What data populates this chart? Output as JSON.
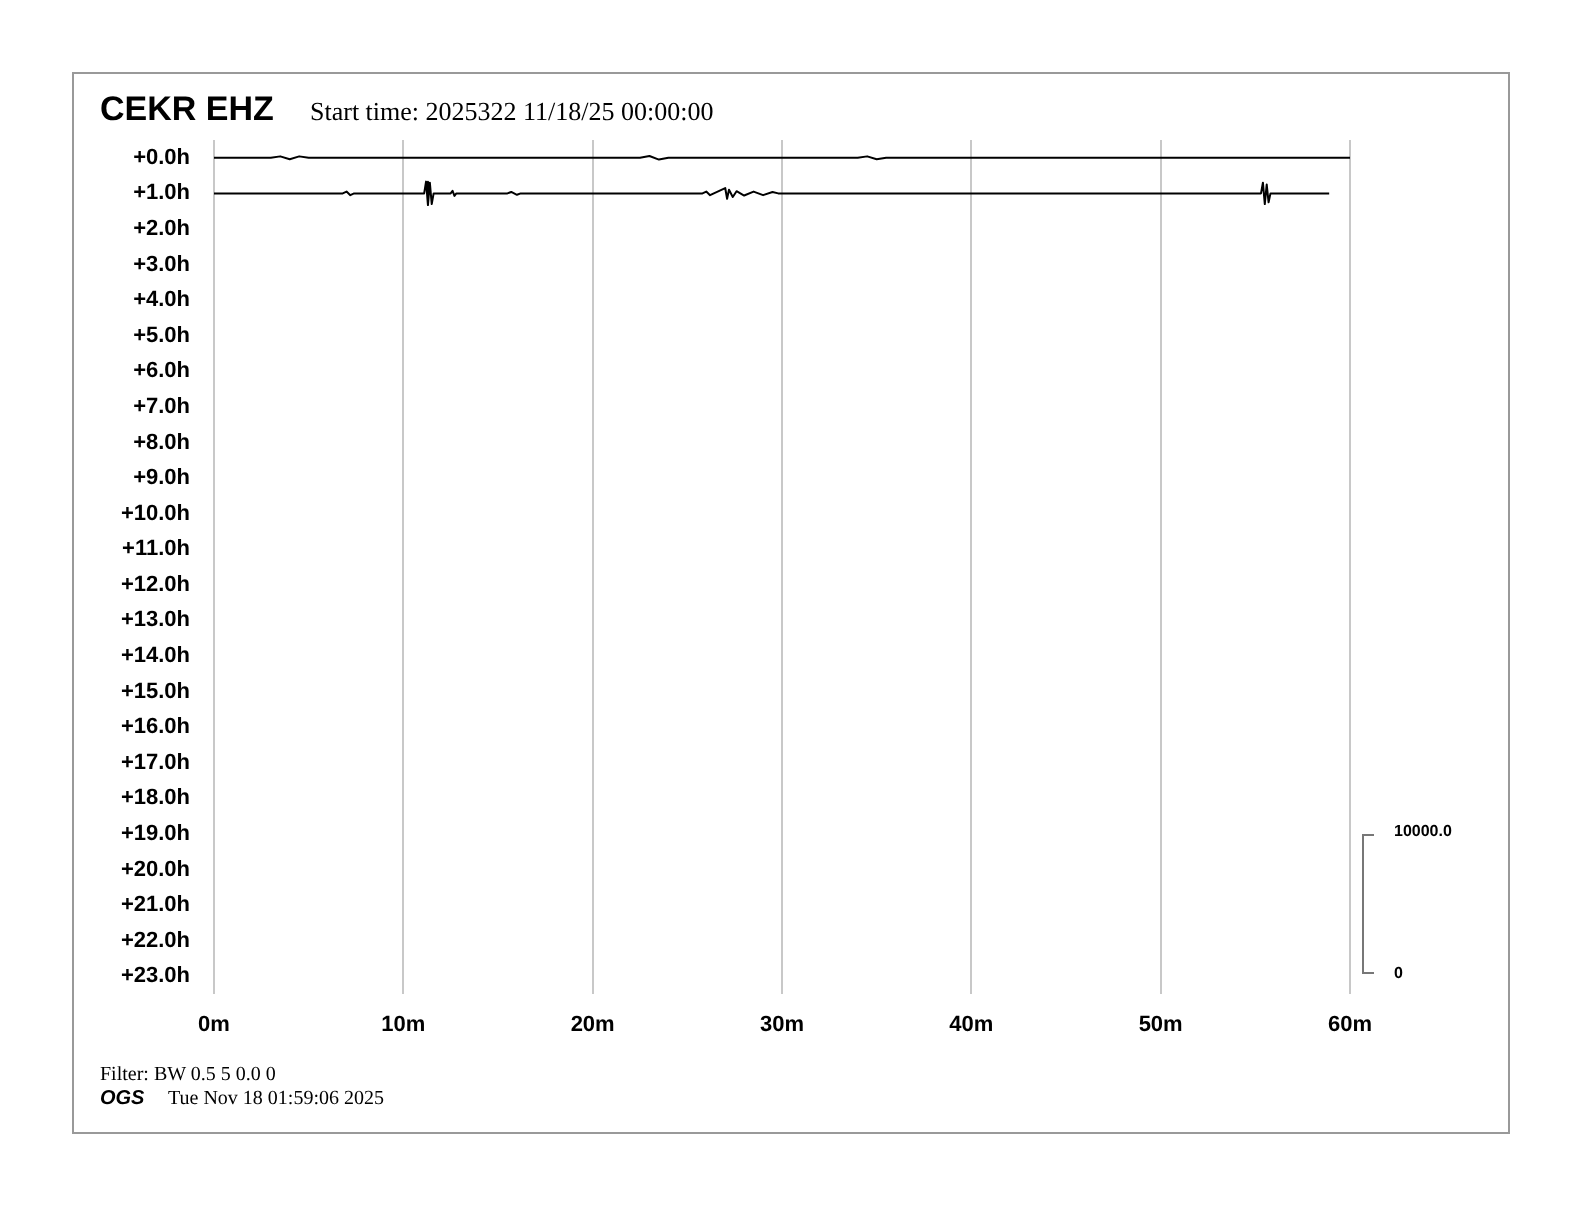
{
  "chart_data": {
    "type": "line",
    "title": "CEKR EHZ",
    "subtitle": "Start time: 2025322 11/18/25 00:00:00",
    "annotations": [
      "Filter: BW 0.5 5 0.0 0",
      "OGS",
      "Tue Nov 18 01:59:06 2025",
      "10000.0",
      "0"
    ],
    "xlim": [
      0,
      60
    ],
    "xticks": [
      {
        "value": 0,
        "label": "0m"
      },
      {
        "value": 10,
        "label": "10m"
      },
      {
        "value": 20,
        "label": "20m"
      },
      {
        "value": 30,
        "label": "30m"
      },
      {
        "value": 40,
        "label": "40m"
      },
      {
        "value": 50,
        "label": "50m"
      },
      {
        "value": 60,
        "label": "60m"
      }
    ],
    "ylim": [
      23.5,
      -0.5
    ],
    "yticks": [
      {
        "value": 0,
        "label": "+0.0h"
      },
      {
        "value": 1,
        "label": "+1.0h"
      },
      {
        "value": 2,
        "label": "+2.0h"
      },
      {
        "value": 3,
        "label": "+3.0h"
      },
      {
        "value": 4,
        "label": "+4.0h"
      },
      {
        "value": 5,
        "label": "+5.0h"
      },
      {
        "value": 6,
        "label": "+6.0h"
      },
      {
        "value": 7,
        "label": "+7.0h"
      },
      {
        "value": 8,
        "label": "+8.0h"
      },
      {
        "value": 9,
        "label": "+9.0h"
      },
      {
        "value": 10,
        "label": "+10.0h"
      },
      {
        "value": 11,
        "label": "+11.0h"
      },
      {
        "value": 12,
        "label": "+12.0h"
      },
      {
        "value": 13,
        "label": "+13.0h"
      },
      {
        "value": 14,
        "label": "+14.0h"
      },
      {
        "value": 15,
        "label": "+15.0h"
      },
      {
        "value": 16,
        "label": "+16.0h"
      },
      {
        "value": 17,
        "label": "+17.0h"
      },
      {
        "value": 18,
        "label": "+18.0h"
      },
      {
        "value": 19,
        "label": "+19.0h"
      },
      {
        "value": 20,
        "label": "+20.0h"
      },
      {
        "value": 21,
        "label": "+21.0h"
      },
      {
        "value": 22,
        "label": "+22.0h"
      },
      {
        "value": 23,
        "label": "+23.0h"
      }
    ],
    "grid": "x",
    "legend": false,
    "marker": "none",
    "line_style": "solid",
    "series": [
      {
        "color": "#000000",
        "x": [
          0,
          3,
          3.5,
          4,
          4.5,
          5,
          22.5,
          23,
          23.5,
          24,
          34,
          34.5,
          35,
          35.5,
          60
        ],
        "values": [
          0,
          0,
          -0.04,
          0.04,
          -0.04,
          0,
          0,
          -0.05,
          0.05,
          0,
          0,
          -0.04,
          0.04,
          0,
          0
        ]
      },
      {
        "color": "#000000",
        "x": [
          0,
          6.8,
          7,
          7.2,
          7.4,
          11.1,
          11.2,
          11.3,
          11.4,
          11.5,
          11.6,
          12.5,
          12.6,
          12.7,
          12.8,
          15.5,
          15.7,
          16,
          16.2,
          25.8,
          26,
          26.2,
          26.4,
          27,
          27.1,
          27.2,
          27.4,
          27.6,
          28,
          28.5,
          29,
          29.5,
          29.8,
          55.3,
          55.4,
          55.5,
          55.6,
          55.7,
          55.8,
          58.9
        ],
        "values": [
          1,
          1,
          0.95,
          1.05,
          1,
          1,
          0.67,
          1.33,
          0.7,
          1.3,
          1,
          1,
          0.93,
          1.07,
          1,
          1,
          0.96,
          1.04,
          1,
          1,
          0.95,
          1.05,
          1,
          0.85,
          1.15,
          0.9,
          1.1,
          0.94,
          1.06,
          0.95,
          1.05,
          0.96,
          1,
          1,
          0.7,
          1.3,
          0.75,
          1.25,
          1,
          1
        ]
      }
    ]
  }
}
